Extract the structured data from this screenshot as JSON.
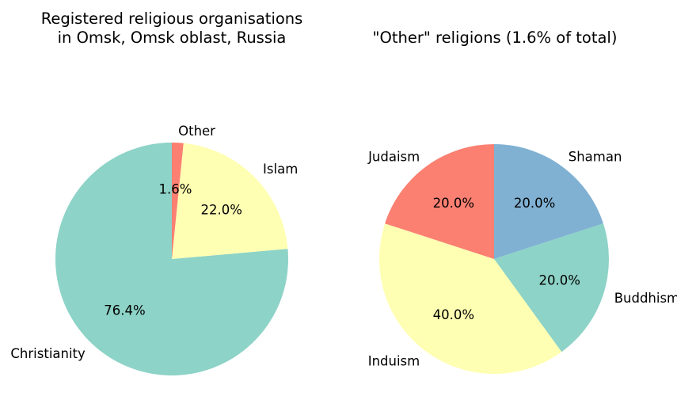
{
  "chart_data": [
    {
      "type": "pie",
      "title": "Registered religious organisations\nin Omsk, Omsk oblast, Russia",
      "categories": [
        "Christianity",
        "Islam",
        "Other"
      ],
      "values": [
        76.4,
        22.0,
        1.6
      ],
      "value_labels": [
        "76.4%",
        "22.0%",
        "1.6%"
      ],
      "colors": [
        "#8dd3c7",
        "#ffffb3",
        "#fb8072"
      ],
      "start_angle": 90,
      "direction": "counterclockwise",
      "legend": "none"
    },
    {
      "type": "pie",
      "title": "\"Other\" religions (1.6% of total)",
      "categories": [
        "Shaman",
        "Buddhism",
        "Induism",
        "Judaism"
      ],
      "values": [
        20.0,
        20.0,
        40.0,
        20.0
      ],
      "value_labels": [
        "20.0%",
        "20.0%",
        "40.0%",
        "20.0%"
      ],
      "colors": [
        "#80b1d3",
        "#8dd3c7",
        "#ffffb3",
        "#fb8072"
      ],
      "start_angle": 90,
      "direction": "clockwise",
      "legend": "none"
    }
  ]
}
